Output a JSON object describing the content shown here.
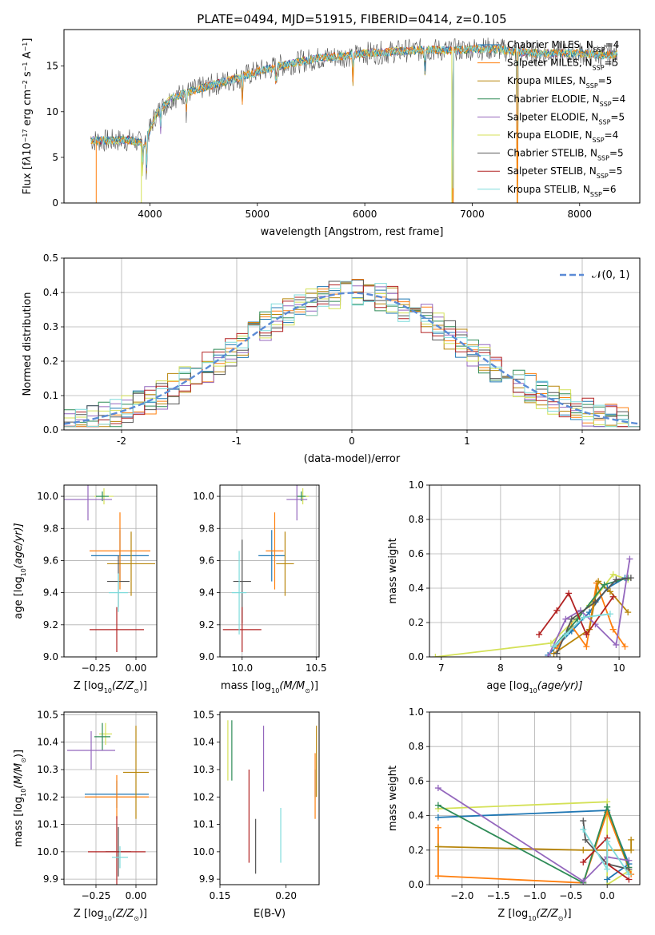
{
  "figure_title": "PLATE=0494, MJD=51915, FIBERID=0414, z=0.105",
  "colors": {
    "chabrier_miles": "#1f77b4",
    "salpeter_miles": "#ff7f0e",
    "kroupa_miles": "#b8860b",
    "chabrier_elodie": "#2e8b57",
    "salpeter_elodie": "#9467bd",
    "kroupa_elodie": "#d4e157",
    "chabrier_stelib": "#555555",
    "salpeter_stelib": "#b22222",
    "kroupa_stelib": "#7fdbdb",
    "gaussian": "#5b8bd6",
    "grid": "#b0b0b0"
  },
  "chart_data": [
    {
      "id": "spectrum",
      "type": "line",
      "title": "PLATE=0494, MJD=51915, FIBERID=0414, z=0.105",
      "xlabel": "wavelength [Angstrom, rest frame]",
      "ylabel_parts": [
        "Flux [f",
        "λ",
        "10",
        "−17",
        " erg cm",
        "−2",
        " s",
        "−1",
        " A",
        "−1",
        "]"
      ],
      "xlim": [
        3200,
        8560
      ],
      "ylim": [
        0,
        19
      ],
      "xticks": [
        4000,
        5000,
        6000,
        7000,
        8000
      ],
      "yticks": [
        0,
        5,
        10,
        15
      ],
      "grid": false,
      "legend_position": "top-right",
      "series": [
        {
          "key": "chabrier_miles",
          "label": "Chabrier MILES, N",
          "sub": "SSP",
          "suffix": "=4"
        },
        {
          "key": "salpeter_miles",
          "label": "Salpeter MILES, N",
          "sub": "SSP",
          "suffix": "=5"
        },
        {
          "key": "kroupa_miles",
          "label": "Kroupa MILES, N",
          "sub": "SSP",
          "suffix": "=5"
        },
        {
          "key": "chabrier_elodie",
          "label": "Chabrier ELODIE, N",
          "sub": "SSP",
          "suffix": "=4"
        },
        {
          "key": "salpeter_elodie",
          "label": "Salpeter ELODIE, N",
          "sub": "SSP",
          "suffix": "=5"
        },
        {
          "key": "kroupa_elodie",
          "label": "Kroupa ELODIE, N",
          "sub": "SSP",
          "suffix": "=4"
        },
        {
          "key": "chabrier_stelib",
          "label": "Chabrier STELIB, N",
          "sub": "SSP",
          "suffix": "=5"
        },
        {
          "key": "salpeter_stelib",
          "label": "Salpeter STELIB, N",
          "sub": "SSP",
          "suffix": "=5"
        },
        {
          "key": "kroupa_stelib",
          "label": "Kroupa STELIB, N",
          "sub": "SSP",
          "suffix": "=6"
        }
      ],
      "continuum": [
        [
          3450,
          6.9
        ],
        [
          3600,
          6.8
        ],
        [
          3800,
          6.9
        ],
        [
          3950,
          6.5
        ],
        [
          4050,
          9.6
        ],
        [
          4200,
          11.5
        ],
        [
          4400,
          12.3
        ],
        [
          4600,
          13.0
        ],
        [
          4800,
          13.6
        ],
        [
          5000,
          14.4
        ],
        [
          5200,
          15.0
        ],
        [
          5400,
          15.5
        ],
        [
          5600,
          15.9
        ],
        [
          5800,
          16.1
        ],
        [
          6000,
          16.4
        ],
        [
          6200,
          16.5
        ],
        [
          6400,
          16.7
        ],
        [
          6600,
          16.8
        ],
        [
          6800,
          16.7
        ],
        [
          7000,
          16.9
        ],
        [
          7200,
          16.9
        ],
        [
          7400,
          16.6
        ],
        [
          7600,
          16.4
        ],
        [
          7800,
          16.4
        ],
        [
          8000,
          16.4
        ],
        [
          8200,
          16.2
        ],
        [
          8350,
          16.3
        ]
      ],
      "dips": [
        [
          3933,
          3.5
        ],
        [
          3968,
          3.5
        ],
        [
          4102,
          2.5
        ],
        [
          4340,
          2.5
        ],
        [
          4861,
          2.5
        ],
        [
          5175,
          3.0
        ],
        [
          5890,
          2.5
        ],
        [
          6563,
          3.0
        ],
        [
          6820,
          16.8
        ],
        [
          7420,
          16.0
        ]
      ]
    },
    {
      "id": "residuals",
      "type": "histogram",
      "xlabel": "(data-model)/error",
      "ylabel": "Normed distribution",
      "xlim": [
        -2.5,
        2.5
      ],
      "ylim": [
        0,
        0.5
      ],
      "xticks": [
        -2,
        -1,
        0,
        1,
        2
      ],
      "yticks": [
        0.0,
        0.1,
        0.2,
        0.3,
        0.4,
        0.5
      ],
      "grid": true,
      "bins": 50,
      "legend_position": "top-right",
      "gaussian_label": "𝒩(0, 1)",
      "gaussian_mu": 0,
      "gaussian_sigma": 1
    },
    {
      "id": "age_vs_z",
      "type": "scatter",
      "xlabel_parts": [
        "Z [log",
        "10",
        "(Z/Z",
        "⊙",
        ")]"
      ],
      "ylabel_parts": [
        "age  [log",
        "10",
        "(age/yr)]"
      ],
      "xlim": [
        -0.45,
        0.13
      ],
      "ylim": [
        9.0,
        10.07
      ],
      "xticks": [
        -0.25,
        0.0
      ],
      "xtick_labels": [
        "−0.25",
        "0.00"
      ],
      "yticks": [
        9.0,
        9.2,
        9.4,
        9.6,
        9.8,
        10.0
      ],
      "grid": true,
      "points": [
        {
          "key": "chabrier_miles",
          "x": -0.1,
          "y": 9.63,
          "xerr": 0.18,
          "yerr": 0.16
        },
        {
          "key": "salpeter_miles",
          "x": -0.1,
          "y": 9.66,
          "xerr": 0.19,
          "yerr": 0.24
        },
        {
          "key": "kroupa_elodie",
          "x": -0.2,
          "y": 10.0,
          "xerr": 0.06,
          "yerr": 0.05
        },
        {
          "key": "chabrier_elodie",
          "x": -0.21,
          "y": 10.0,
          "xerr": 0.04,
          "yerr": 0.03
        },
        {
          "key": "salpeter_elodie",
          "x": -0.3,
          "y": 9.98,
          "xerr": 0.15,
          "yerr": 0.13
        },
        {
          "key": "kroupa_miles",
          "x": -0.03,
          "y": 9.58,
          "xerr": 0.15,
          "yerr": 0.2
        },
        {
          "key": "chabrier_stelib",
          "x": -0.11,
          "y": 9.47,
          "xerr": 0.07,
          "yerr": 0.16
        },
        {
          "key": "salpeter_stelib",
          "x": -0.12,
          "y": 9.17,
          "xerr": 0.17,
          "yerr": 0.14
        },
        {
          "key": "kroupa_stelib",
          "x": -0.11,
          "y": 9.4,
          "xerr": 0.06,
          "yerr": 0.12
        }
      ]
    },
    {
      "id": "age_vs_mass",
      "type": "scatter",
      "xlabel_parts": [
        "mass [log",
        "10",
        "(M/M",
        "⊙",
        ")]"
      ],
      "ylabel": "",
      "xlim": [
        9.85,
        10.52
      ],
      "ylim": [
        9.0,
        10.07
      ],
      "xticks": [
        10.0,
        10.5
      ],
      "xtick_labels": [
        "10.0",
        "10.5"
      ],
      "yticks": [
        9.0,
        9.2,
        9.4,
        9.6,
        9.8,
        10.0
      ],
      "grid": true,
      "points": [
        {
          "key": "chabrier_miles",
          "x": 10.2,
          "y": 9.63,
          "xerr": 0.09,
          "yerr": 0.16
        },
        {
          "key": "salpeter_miles",
          "x": 10.22,
          "y": 9.66,
          "xerr": 0.06,
          "yerr": 0.24
        },
        {
          "key": "kroupa_elodie",
          "x": 10.41,
          "y": 10.0,
          "xerr": 0.04,
          "yerr": 0.05
        },
        {
          "key": "chabrier_elodie",
          "x": 10.4,
          "y": 10.0,
          "xerr": 0.03,
          "yerr": 0.03
        },
        {
          "key": "salpeter_elodie",
          "x": 10.37,
          "y": 9.98,
          "xerr": 0.07,
          "yerr": 0.13
        },
        {
          "key": "kroupa_miles",
          "x": 10.29,
          "y": 9.58,
          "xerr": 0.06,
          "yerr": 0.2
        },
        {
          "key": "chabrier_stelib",
          "x": 10.0,
          "y": 9.47,
          "xerr": 0.06,
          "yerr": 0.26
        },
        {
          "key": "salpeter_stelib",
          "x": 10.0,
          "y": 9.17,
          "xerr": 0.13,
          "yerr": 0.14
        },
        {
          "key": "kroupa_stelib",
          "x": 9.98,
          "y": 9.4,
          "xerr": 0.05,
          "yerr": 0.26
        }
      ]
    },
    {
      "id": "weight_vs_age",
      "type": "line",
      "xlabel_parts": [
        "age  [log",
        "10",
        "(age/yr)]"
      ],
      "ylabel": "mass weight",
      "xlim": [
        6.8,
        10.35
      ],
      "ylim": [
        0,
        1.0
      ],
      "xticks": [
        7,
        8,
        9,
        10
      ],
      "yticks": [
        0.0,
        0.2,
        0.4,
        0.6,
        0.8,
        1.0
      ],
      "grid": true,
      "series": [
        {
          "key": "kroupa_elodie",
          "x": [
            6.9,
            8.85,
            9.5,
            9.9,
            10.15
          ],
          "y": [
            0.0,
            0.08,
            0.3,
            0.48,
            0.45
          ]
        },
        {
          "key": "chabrier_miles",
          "x": [
            8.8,
            9.2,
            9.5,
            9.8,
            10.1
          ],
          "y": [
            0.01,
            0.15,
            0.26,
            0.4,
            0.46
          ]
        },
        {
          "key": "salpeter_miles",
          "x": [
            8.95,
            9.2,
            9.45,
            9.62,
            9.9,
            10.1
          ],
          "y": [
            0.05,
            0.18,
            0.06,
            0.43,
            0.16,
            0.06
          ]
        },
        {
          "key": "kroupa_miles",
          "x": [
            8.9,
            9.5,
            9.65,
            9.85,
            10.15
          ],
          "y": [
            0.02,
            0.16,
            0.44,
            0.38,
            0.26
          ]
        },
        {
          "key": "chabrier_elodie",
          "x": [
            8.9,
            9.3,
            9.75,
            10.15
          ],
          "y": [
            0.06,
            0.22,
            0.42,
            0.46
          ]
        },
        {
          "key": "salpeter_elodie",
          "x": [
            8.8,
            9.1,
            9.35,
            9.6,
            9.95,
            10.18
          ],
          "y": [
            0.0,
            0.22,
            0.27,
            0.19,
            0.07,
            0.57
          ]
        },
        {
          "key": "chabrier_stelib",
          "x": [
            8.95,
            9.2,
            9.6,
            9.95,
            10.2
          ],
          "y": [
            0.02,
            0.22,
            0.32,
            0.45,
            0.46
          ]
        },
        {
          "key": "salpeter_stelib",
          "x": [
            8.65,
            8.95,
            9.15,
            9.45,
            9.9
          ],
          "y": [
            0.13,
            0.27,
            0.37,
            0.13,
            0.35
          ]
        },
        {
          "key": "kroupa_stelib",
          "x": [
            8.9,
            9.1,
            9.4,
            9.85
          ],
          "y": [
            0.06,
            0.13,
            0.23,
            0.25
          ]
        }
      ]
    },
    {
      "id": "mass_vs_z",
      "type": "scatter",
      "xlabel_parts": [
        "Z [log",
        "10",
        "(Z/Z",
        "⊙",
        ")]"
      ],
      "ylabel_parts": [
        "mass [log",
        "10",
        "(M/M",
        "⊙",
        ")]"
      ],
      "xlim": [
        -0.45,
        0.13
      ],
      "ylim": [
        9.88,
        10.51
      ],
      "xticks": [
        -0.25,
        0.0
      ],
      "xtick_labels": [
        "−0.25",
        "0.00"
      ],
      "yticks": [
        9.9,
        10.0,
        10.1,
        10.2,
        10.3,
        10.4,
        10.5
      ],
      "grid": true,
      "points": [
        {
          "key": "chabrier_miles",
          "x": -0.12,
          "y": 10.21,
          "xerr": 0.2,
          "yerr": 0.05
        },
        {
          "key": "salpeter_miles",
          "x": -0.12,
          "y": 10.2,
          "xerr": 0.2,
          "yerr": 0.08
        },
        {
          "key": "kroupa_elodie",
          "x": -0.19,
          "y": 10.43,
          "xerr": 0.04,
          "yerr": 0.04
        },
        {
          "key": "chabrier_elodie",
          "x": -0.21,
          "y": 10.42,
          "xerr": 0.05,
          "yerr": 0.05
        },
        {
          "key": "salpeter_elodie",
          "x": -0.28,
          "y": 10.37,
          "xerr": 0.15,
          "yerr": 0.07
        },
        {
          "key": "kroupa_miles",
          "x": 0.0,
          "y": 10.29,
          "xerr": 0.08,
          "yerr": 0.17
        },
        {
          "key": "chabrier_stelib",
          "x": -0.11,
          "y": 10.0,
          "xerr": 0.08,
          "yerr": 0.09
        },
        {
          "key": "salpeter_stelib",
          "x": -0.12,
          "y": 10.0,
          "xerr": 0.18,
          "yerr": 0.13
        },
        {
          "key": "kroupa_stelib",
          "x": -0.1,
          "y": 9.98,
          "xerr": 0.05,
          "yerr": 0.04
        }
      ]
    },
    {
      "id": "mass_vs_ebv",
      "type": "scatter",
      "xlabel": "E(B-V)",
      "ylabel": "",
      "xlim": [
        0.15,
        0.225
      ],
      "ylim": [
        9.88,
        10.51
      ],
      "xticks": [
        0.15,
        0.2
      ],
      "xtick_labels": [
        "0.15",
        "0.20"
      ],
      "yticks": [
        9.9,
        10.0,
        10.1,
        10.2,
        10.3,
        10.4,
        10.5
      ],
      "grid": false,
      "points": [
        {
          "key": "kroupa_elodie",
          "x": 0.156,
          "y": 10.37,
          "yerr": 0.11
        },
        {
          "key": "chabrier_elodie",
          "x": 0.159,
          "y": 10.37,
          "yerr": 0.11
        },
        {
          "key": "salpeter_stelib",
          "x": 0.172,
          "y": 10.13,
          "yerr": 0.17
        },
        {
          "key": "chabrier_stelib",
          "x": 0.177,
          "y": 10.02,
          "yerr": 0.1
        },
        {
          "key": "salpeter_elodie",
          "x": 0.183,
          "y": 10.34,
          "yerr": 0.12
        },
        {
          "key": "kroupa_stelib",
          "x": 0.196,
          "y": 10.06,
          "yerr": 0.1
        },
        {
          "key": "chabrier_miles",
          "x": 0.222,
          "y": 10.25,
          "yerr": 0.05
        },
        {
          "key": "salpeter_miles",
          "x": 0.222,
          "y": 10.24,
          "yerr": 0.12
        },
        {
          "key": "kroupa_miles",
          "x": 0.223,
          "y": 10.33,
          "yerr": 0.13
        }
      ]
    },
    {
      "id": "weight_vs_z",
      "type": "line",
      "xlabel_parts": [
        "Z [log",
        "10",
        "(Z/Z",
        "⊙",
        ")]"
      ],
      "ylabel": "mass weight",
      "xlim": [
        -2.45,
        0.45
      ],
      "ylim": [
        0,
        1.0
      ],
      "xticks": [
        -2.0,
        -1.5,
        -1.0,
        -0.5,
        0.0
      ],
      "xtick_labels": [
        "−2.0",
        "−1.5",
        "−1.0",
        "−0.5",
        "0.0"
      ],
      "yticks": [
        0.0,
        0.2,
        0.4,
        0.6,
        0.8,
        1.0
      ],
      "grid": true,
      "series": [
        {
          "key": "kroupa_elodie",
          "x": [
            -2.33,
            0.0,
            0.0,
            0.3
          ],
          "y": [
            0.44,
            0.48,
            0.0,
            0.08
          ]
        },
        {
          "key": "chabrier_miles",
          "x": [
            -2.33,
            0.0,
            0.3,
            0.0
          ],
          "y": [
            0.39,
            0.43,
            0.12,
            0.03
          ]
        },
        {
          "key": "salpeter_miles",
          "x": [
            -2.33,
            -2.33,
            -0.33,
            0.0,
            0.33
          ],
          "y": [
            0.33,
            0.05,
            0.01,
            0.42,
            0.06
          ]
        },
        {
          "key": "kroupa_miles",
          "x": [
            -2.33,
            -0.33,
            0.33,
            0.33
          ],
          "y": [
            0.22,
            0.2,
            0.2,
            0.26
          ]
        },
        {
          "key": "chabrier_elodie",
          "x": [
            -2.33,
            -0.33,
            0.0,
            0.3
          ],
          "y": [
            0.46,
            0.01,
            0.45,
            0.1
          ]
        },
        {
          "key": "salpeter_elodie",
          "x": [
            -2.33,
            -0.33,
            0.0,
            0.3
          ],
          "y": [
            0.56,
            0.02,
            0.16,
            0.14
          ]
        },
        {
          "key": "chabrier_stelib",
          "x": [
            -0.33,
            -0.3,
            0.0,
            0.3
          ],
          "y": [
            0.37,
            0.26,
            0.12,
            0.09
          ]
        },
        {
          "key": "salpeter_stelib",
          "x": [
            -0.33,
            0.0,
            0.0,
            0.3
          ],
          "y": [
            0.13,
            0.27,
            0.12,
            0.03
          ]
        },
        {
          "key": "kroupa_stelib",
          "x": [
            -0.33,
            0.0,
            0.0,
            0.3
          ],
          "y": [
            0.32,
            0.09,
            0.25,
            0.06
          ]
        }
      ]
    }
  ]
}
